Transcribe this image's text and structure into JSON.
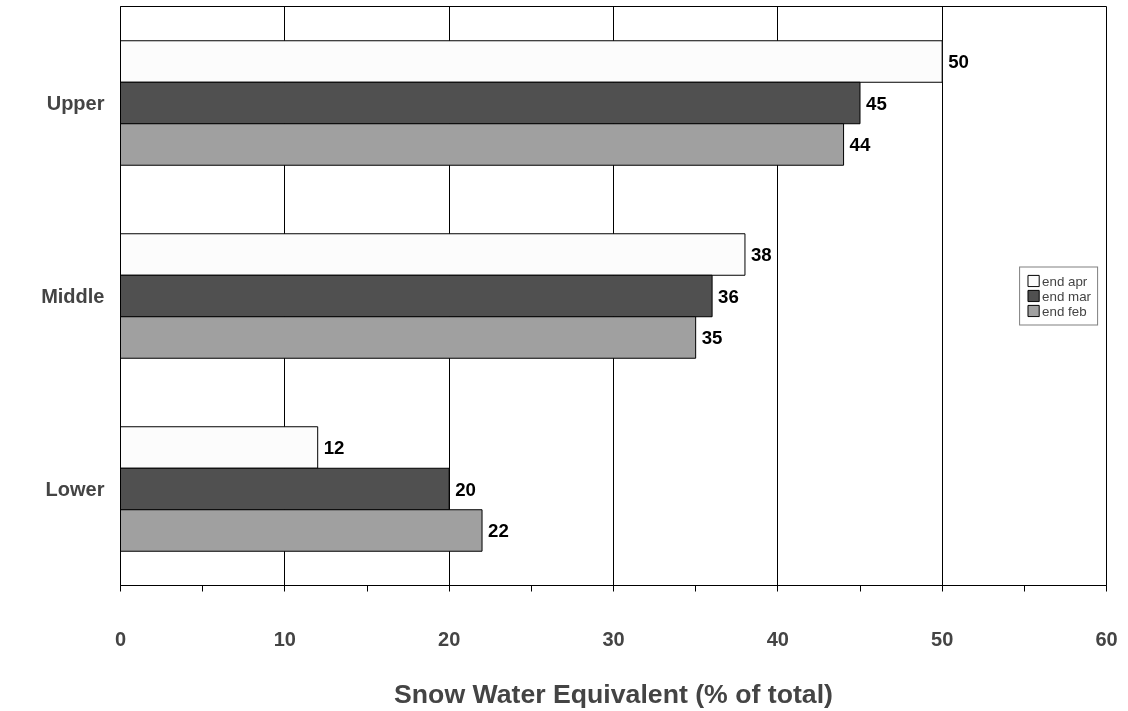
{
  "chart_data": {
    "type": "bar",
    "orientation": "horizontal",
    "xlabel": "Snow Water Equivalent (% of total)",
    "categories": [
      "Upper",
      "Middle",
      "Lower"
    ],
    "series": [
      {
        "name": "end apr",
        "color": "#fcfcfc",
        "values": [
          50,
          38,
          12
        ]
      },
      {
        "name": "end mar",
        "color": "#505050",
        "values": [
          45,
          36,
          20
        ]
      },
      {
        "name": "end feb",
        "color": "#a0a0a0",
        "values": [
          44,
          35,
          22
        ]
      }
    ],
    "xlim": [
      0,
      60
    ],
    "xticks": [
      0,
      {
        "value": 5,
        "label": null
      },
      10,
      {
        "value": 15,
        "label": null
      },
      20,
      {
        "value": 25,
        "label": null
      },
      30,
      {
        "value": 35,
        "label": null
      },
      40,
      {
        "value": 45,
        "label": null
      },
      50,
      {
        "value": 55,
        "label": null
      },
      60
    ],
    "grid": "x",
    "legend": "right",
    "data_labels": true
  }
}
